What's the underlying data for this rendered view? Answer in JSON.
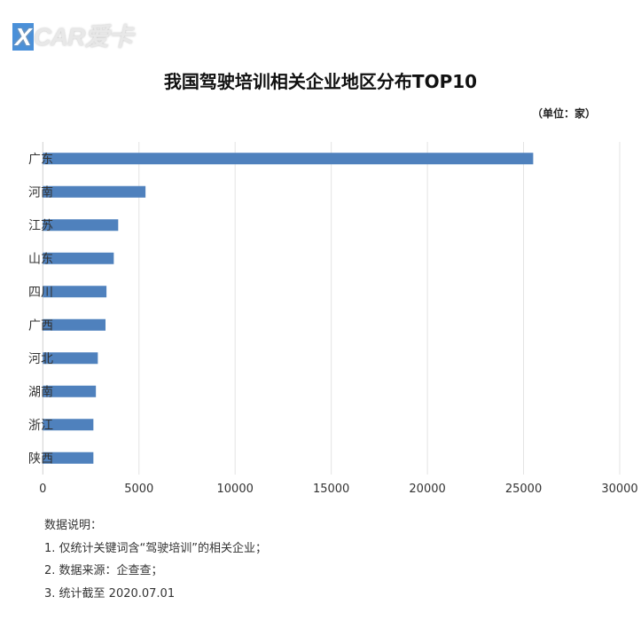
{
  "logo_text": "XCAR爱卡",
  "chart_data": {
    "type": "bar",
    "orientation": "horizontal",
    "title": "我国驾驶培训相关企业地区分布TOP10",
    "unit": "（单位：家）",
    "categories": [
      "广东",
      "河南",
      "江苏",
      "山东",
      "四川",
      "广西",
      "河北",
      "湖南",
      "浙江",
      "陕西"
    ],
    "values": [
      25500,
      5340,
      3920,
      3690,
      3310,
      3260,
      2860,
      2760,
      2630,
      2630
    ],
    "xlim": [
      0,
      30000
    ],
    "xticks": [
      "0",
      "5000",
      "10000",
      "15000",
      "20000",
      "25000",
      "30000"
    ],
    "grid": true,
    "bar_color": "#4f81bd",
    "legend": "none"
  },
  "notes": {
    "heading": "数据说明：",
    "items": [
      "1. 仅统计关键词含“驾驶培训”的相关企业；",
      "2. 数据来源：企查查；",
      "3. 统计截至 2020.07.01"
    ]
  }
}
